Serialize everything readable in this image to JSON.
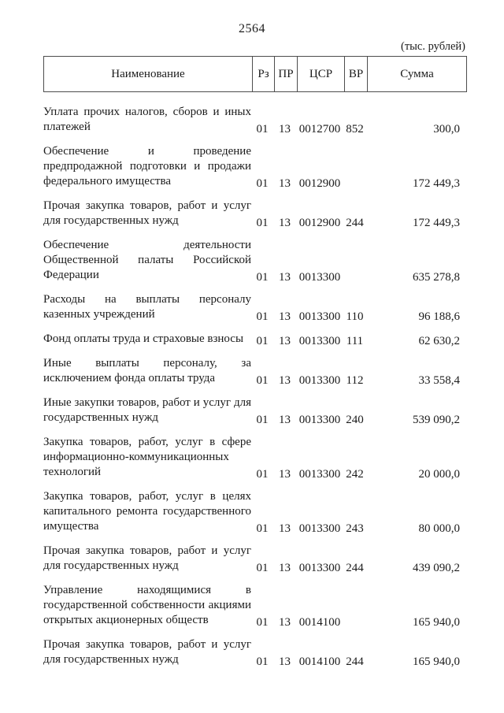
{
  "page": {
    "number": "2564",
    "units_note": "(тыс. рублей)"
  },
  "table": {
    "headers": [
      "Наименование",
      "Рз",
      "ПР",
      "ЦСР",
      "ВР",
      "Сумма"
    ],
    "rows": [
      {
        "name": "Уплата прочих налогов, сборов и иных платежей",
        "rz": "01",
        "pr": "13",
        "csr": "0012700",
        "vr": "852",
        "sum": "300,0"
      },
      {
        "name": "Обеспечение и проведение предпродажной подготовки и продажи федерального имущества",
        "rz": "01",
        "pr": "13",
        "csr": "0012900",
        "vr": "",
        "sum": "172 449,3"
      },
      {
        "name": "Прочая закупка товаров, работ и услуг для государственных нужд",
        "rz": "01",
        "pr": "13",
        "csr": "0012900",
        "vr": "244",
        "sum": "172 449,3"
      },
      {
        "name": "Обеспечение деятельности Общественной палаты Российской Федерации",
        "rz": "01",
        "pr": "13",
        "csr": "0013300",
        "vr": "",
        "sum": "635 278,8"
      },
      {
        "name": "Расходы на выплаты персоналу казенных учреждений",
        "rz": "01",
        "pr": "13",
        "csr": "0013300",
        "vr": "110",
        "sum": "96 188,6"
      },
      {
        "name": "Фонд оплаты труда и страховые взносы",
        "rz": "01",
        "pr": "13",
        "csr": "0013300",
        "vr": "111",
        "sum": "62 630,2"
      },
      {
        "name": "Иные выплаты персоналу, за исключением фонда оплаты труда",
        "rz": "01",
        "pr": "13",
        "csr": "0013300",
        "vr": "112",
        "sum": "33 558,4"
      },
      {
        "name": "Иные закупки товаров, работ и услуг для государственных нужд",
        "rz": "01",
        "pr": "13",
        "csr": "0013300",
        "vr": "240",
        "sum": "539 090,2"
      },
      {
        "name": "Закупка товаров, работ, услуг в сфере информационно-коммуникационных технологий",
        "rz": "01",
        "pr": "13",
        "csr": "0013300",
        "vr": "242",
        "sum": "20 000,0"
      },
      {
        "name": "Закупка товаров, работ, услуг в целях капитального ремонта государственного имущества",
        "rz": "01",
        "pr": "13",
        "csr": "0013300",
        "vr": "243",
        "sum": "80 000,0"
      },
      {
        "name": "Прочая закупка товаров, работ и услуг для государственных нужд",
        "rz": "01",
        "pr": "13",
        "csr": "0013300",
        "vr": "244",
        "sum": "439 090,2"
      },
      {
        "name": "Управление находящимися в государственной собственности акциями открытых акционерных обществ",
        "rz": "01",
        "pr": "13",
        "csr": "0014100",
        "vr": "",
        "sum": "165 940,0"
      },
      {
        "name": "Прочая закупка товаров, работ и услуг для государственных нужд",
        "rz": "01",
        "pr": "13",
        "csr": "0014100",
        "vr": "244",
        "sum": "165 940,0"
      }
    ]
  }
}
